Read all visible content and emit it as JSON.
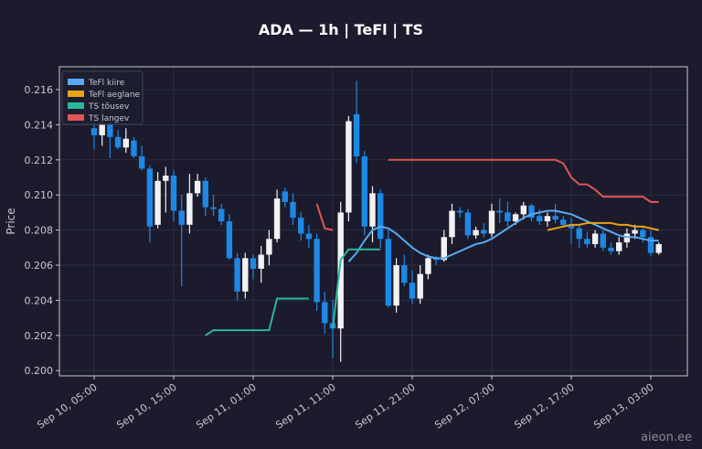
{
  "chart_data": {
    "type": "candlestick",
    "title": "ADA — 1h  |  TeFl  |  TS",
    "y_label": "Price",
    "watermark": "aieon.ee",
    "x": [
      "Sep 10, 05:00",
      "Sep 10, 06:00",
      "Sep 10, 07:00",
      "Sep 10, 08:00",
      "Sep 10, 09:00",
      "Sep 10, 10:00",
      "Sep 10, 11:00",
      "Sep 10, 12:00",
      "Sep 10, 13:00",
      "Sep 10, 14:00",
      "Sep 10, 15:00",
      "Sep 10, 16:00",
      "Sep 10, 17:00",
      "Sep 10, 18:00",
      "Sep 10, 19:00",
      "Sep 10, 20:00",
      "Sep 10, 21:00",
      "Sep 10, 22:00",
      "Sep 10, 23:00",
      "Sep 11, 00:00",
      "Sep 11, 01:00",
      "Sep 11, 02:00",
      "Sep 11, 03:00",
      "Sep 11, 04:00",
      "Sep 11, 05:00",
      "Sep 11, 06:00",
      "Sep 11, 07:00",
      "Sep 11, 08:00",
      "Sep 11, 09:00",
      "Sep 11, 10:00",
      "Sep 11, 11:00",
      "Sep 11, 12:00",
      "Sep 11, 13:00",
      "Sep 11, 14:00",
      "Sep 11, 15:00",
      "Sep 11, 16:00",
      "Sep 11, 17:00",
      "Sep 11, 18:00",
      "Sep 11, 19:00",
      "Sep 11, 20:00",
      "Sep 11, 21:00",
      "Sep 11, 22:00",
      "Sep 11, 23:00",
      "Sep 12, 00:00",
      "Sep 12, 01:00",
      "Sep 12, 02:00",
      "Sep 12, 03:00",
      "Sep 12, 04:00",
      "Sep 12, 05:00",
      "Sep 12, 06:00",
      "Sep 12, 07:00",
      "Sep 12, 08:00",
      "Sep 12, 09:00",
      "Sep 12, 10:00",
      "Sep 12, 11:00",
      "Sep 12, 12:00",
      "Sep 12, 13:00",
      "Sep 12, 14:00",
      "Sep 12, 15:00",
      "Sep 12, 16:00",
      "Sep 12, 17:00",
      "Sep 12, 18:00",
      "Sep 12, 19:00",
      "Sep 12, 20:00",
      "Sep 12, 21:00",
      "Sep 12, 22:00",
      "Sep 12, 23:00",
      "Sep 13, 00:00",
      "Sep 13, 01:00",
      "Sep 13, 02:00",
      "Sep 13, 03:00",
      "Sep 13, 04:00"
    ],
    "open": [
      0.2138,
      0.2134,
      0.214,
      0.2133,
      0.2127,
      0.2131,
      0.2122,
      0.2115,
      0.2083,
      0.2108,
      0.2111,
      0.2091,
      0.2083,
      0.2101,
      0.2108,
      0.2093,
      0.2092,
      0.2085,
      0.2064,
      0.2045,
      0.2064,
      0.2058,
      0.2066,
      0.2075,
      0.2102,
      0.2096,
      0.2087,
      0.2078,
      0.2075,
      0.2039,
      0.2027,
      0.2024,
      0.209,
      0.2146,
      0.2122,
      0.2082,
      0.2101,
      0.2075,
      0.2037,
      0.206,
      0.205,
      0.2041,
      0.2055,
      0.2064,
      0.2063,
      0.2076,
      0.2091,
      0.209,
      0.2077,
      0.208,
      0.2078,
      0.2091,
      0.209,
      0.2085,
      0.2089,
      0.2094,
      0.2088,
      0.2085,
      0.2088,
      0.2086,
      0.2083,
      0.2081,
      0.2075,
      0.2072,
      0.2078,
      0.207,
      0.2068,
      0.2073,
      0.2078,
      0.208,
      0.2076,
      0.2067
    ],
    "high": [
      0.2143,
      0.215,
      0.2143,
      0.2137,
      0.2138,
      0.2133,
      0.2128,
      0.2117,
      0.2113,
      0.2116,
      0.2114,
      0.21,
      0.2112,
      0.2112,
      0.211,
      0.21,
      0.2095,
      0.2089,
      0.2067,
      0.2067,
      0.2066,
      0.2071,
      0.208,
      0.2103,
      0.2104,
      0.2101,
      0.209,
      0.2083,
      0.2078,
      0.2045,
      0.204,
      0.2096,
      0.2145,
      0.2165,
      0.2125,
      0.2105,
      0.2103,
      0.208,
      0.2064,
      0.2066,
      0.2057,
      0.206,
      0.2066,
      0.2065,
      0.208,
      0.2095,
      0.2093,
      0.2092,
      0.2082,
      0.2084,
      0.2095,
      0.2098,
      0.2096,
      0.209,
      0.2096,
      0.2095,
      0.2092,
      0.209,
      0.2095,
      0.2088,
      0.2087,
      0.2083,
      0.2079,
      0.208,
      0.208,
      0.2073,
      0.2076,
      0.2081,
      0.2083,
      0.2082,
      0.208,
      0.2073
    ],
    "low": [
      0.2126,
      0.2128,
      0.2121,
      0.2126,
      0.2124,
      0.2121,
      0.2114,
      0.2073,
      0.2081,
      0.209,
      0.2085,
      0.2048,
      0.2078,
      0.2099,
      0.2088,
      0.2088,
      0.2083,
      0.2063,
      0.204,
      0.2041,
      0.2052,
      0.205,
      0.206,
      0.2073,
      0.2093,
      0.2083,
      0.2074,
      0.207,
      0.2034,
      0.2021,
      0.2007,
      0.2005,
      0.2085,
      0.2118,
      0.2077,
      0.2073,
      0.207,
      0.2036,
      0.2033,
      0.2048,
      0.2038,
      0.2038,
      0.2052,
      0.206,
      0.2062,
      0.2072,
      0.2087,
      0.2075,
      0.2075,
      0.2076,
      0.2076,
      0.2084,
      0.2082,
      0.2083,
      0.2086,
      0.2085,
      0.2083,
      0.2082,
      0.2084,
      0.2082,
      0.2072,
      0.207,
      0.207,
      0.207,
      0.2068,
      0.2066,
      0.2066,
      0.207,
      0.2075,
      0.2073,
      0.2065,
      0.2066
    ],
    "close": [
      0.2134,
      0.214,
      0.2133,
      0.2127,
      0.2132,
      0.2122,
      0.2115,
      0.2082,
      0.2108,
      0.2111,
      0.2091,
      0.2083,
      0.2101,
      0.2108,
      0.2093,
      0.2092,
      0.2085,
      0.2064,
      0.2045,
      0.2064,
      0.2058,
      0.2066,
      0.2075,
      0.2098,
      0.2096,
      0.2087,
      0.2078,
      0.2075,
      0.2039,
      0.2027,
      0.2024,
      0.209,
      0.2142,
      0.2122,
      0.2082,
      0.2101,
      0.2075,
      0.2037,
      0.206,
      0.205,
      0.2041,
      0.2055,
      0.2064,
      0.2063,
      0.2076,
      0.2091,
      0.209,
      0.2077,
      0.208,
      0.2078,
      0.2091,
      0.209,
      0.2085,
      0.2089,
      0.2094,
      0.2087,
      0.2085,
      0.2088,
      0.2086,
      0.2083,
      0.2081,
      0.2075,
      0.2072,
      0.2078,
      0.207,
      0.2068,
      0.2073,
      0.2078,
      0.208,
      0.2076,
      0.2067,
      0.2072
    ],
    "up_color": "#f2f2f2",
    "down_color": "#1e88e5",
    "series": [
      {
        "name": "TeFl kiire",
        "color": "#5aa9f0",
        "values": [
          null,
          null,
          null,
          null,
          null,
          null,
          null,
          null,
          null,
          null,
          null,
          null,
          null,
          null,
          null,
          null,
          null,
          null,
          null,
          null,
          null,
          null,
          null,
          null,
          null,
          null,
          null,
          null,
          null,
          null,
          null,
          null,
          0.2062,
          0.2067,
          0.2074,
          0.208,
          0.2082,
          0.2081,
          0.2078,
          0.2074,
          0.207,
          0.2067,
          0.2065,
          0.2064,
          0.2064,
          0.2066,
          0.2068,
          0.207,
          0.2072,
          0.2073,
          0.2075,
          0.2078,
          0.2081,
          0.2084,
          0.2087,
          0.2089,
          0.209,
          0.2091,
          0.2091,
          0.209,
          0.2089,
          0.2087,
          0.2085,
          0.2083,
          0.2081,
          0.2079,
          0.2077,
          0.2076,
          0.2076,
          0.2075,
          0.2074,
          0.2074
        ]
      },
      {
        "name": "TeFl aeglane",
        "color": "#e8a317",
        "values": [
          null,
          null,
          null,
          null,
          null,
          null,
          null,
          null,
          null,
          null,
          null,
          null,
          null,
          null,
          null,
          null,
          null,
          null,
          null,
          null,
          null,
          null,
          null,
          null,
          null,
          null,
          null,
          null,
          null,
          null,
          null,
          null,
          null,
          null,
          null,
          null,
          null,
          null,
          null,
          null,
          null,
          null,
          null,
          null,
          null,
          null,
          null,
          null,
          null,
          null,
          null,
          null,
          null,
          null,
          null,
          null,
          null,
          0.208,
          0.2081,
          0.2082,
          0.2083,
          0.2083,
          0.2084,
          0.2084,
          0.2084,
          0.2084,
          0.2083,
          0.2083,
          0.2082,
          0.2082,
          0.2081,
          0.208
        ]
      },
      {
        "name": "TS tõusev",
        "color": "#2bb79a",
        "values": [
          null,
          null,
          null,
          null,
          null,
          null,
          null,
          null,
          null,
          null,
          null,
          null,
          null,
          null,
          0.202,
          0.2023,
          0.2023,
          0.2023,
          0.2023,
          0.2023,
          0.2023,
          0.2023,
          0.2023,
          0.2041,
          0.2041,
          0.2041,
          0.2041,
          0.2041,
          null,
          null,
          0.2024,
          0.2063,
          0.2069,
          0.2069,
          0.2069,
          0.2069,
          0.2069,
          null,
          null,
          null,
          null,
          null,
          null,
          null,
          null,
          null,
          null,
          null,
          null,
          null,
          null,
          null,
          null,
          null,
          null,
          null,
          null,
          null,
          null,
          null,
          null,
          null,
          null,
          null,
          null,
          null,
          null,
          null,
          null,
          null,
          null,
          null
        ]
      },
      {
        "name": "TS langev",
        "color": "#e05555",
        "values": [
          null,
          null,
          null,
          null,
          null,
          null,
          null,
          null,
          null,
          null,
          null,
          null,
          null,
          null,
          null,
          null,
          null,
          null,
          null,
          null,
          null,
          null,
          null,
          null,
          null,
          null,
          null,
          null,
          0.2095,
          0.2081,
          0.208,
          null,
          null,
          null,
          null,
          null,
          null,
          0.212,
          0.212,
          0.212,
          0.212,
          0.212,
          0.212,
          0.212,
          0.212,
          0.212,
          0.212,
          0.212,
          0.212,
          0.212,
          0.212,
          0.212,
          0.212,
          0.212,
          0.212,
          0.212,
          0.212,
          0.212,
          0.212,
          0.2118,
          0.211,
          0.2106,
          0.2106,
          0.2103,
          0.2099,
          0.2099,
          0.2099,
          0.2099,
          0.2099,
          0.2099,
          0.2096,
          0.2096
        ]
      }
    ],
    "ylim": [
      0.1997,
      0.2173
    ],
    "yticks": [
      {
        "value": 0.2,
        "label": "0.200"
      },
      {
        "value": 0.202,
        "label": "0.202"
      },
      {
        "value": 0.204,
        "label": "0.204"
      },
      {
        "value": 0.206,
        "label": "0.206"
      },
      {
        "value": 0.208,
        "label": "0.208"
      },
      {
        "value": 0.21,
        "label": "0.210"
      },
      {
        "value": 0.212,
        "label": "0.212"
      },
      {
        "value": 0.214,
        "label": "0.214"
      },
      {
        "value": 0.216,
        "label": "0.216"
      }
    ],
    "xticks": [
      "Sep 10, 05:00",
      "Sep 10, 15:00",
      "Sep 11, 01:00",
      "Sep 11, 11:00",
      "Sep 11, 21:00",
      "Sep 12, 07:00",
      "Sep 12, 17:00",
      "Sep 13, 03:00"
    ],
    "grid": true,
    "legend": "upper left"
  }
}
